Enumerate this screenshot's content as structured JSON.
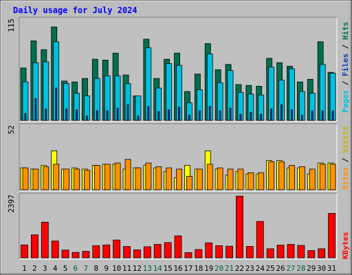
{
  "title": "Daily usage for July 2024",
  "colors": {
    "frame_bg": "#bdbdbd",
    "panel_bg": "#c0c0c0",
    "title_text": "#0000ff",
    "hits": "#007050",
    "files": "#00c0e0",
    "pages": "#0040b0",
    "visits": "#ffff00",
    "sites": "#ff9000",
    "kbytes": "#ff0000",
    "weekend_label": "#006040",
    "day_label": "#000000"
  },
  "axis_labels": {
    "top": {
      "pages": "Pages",
      "files": "Files",
      "hits": "Hits",
      "sep": " / "
    },
    "mid": {
      "sites": "Sites",
      "visits": "Visits",
      "sep": " / "
    },
    "bot": {
      "kbytes": "KBytes"
    }
  },
  "chart_data": {
    "type": "bar",
    "title": "Daily usage for July 2024",
    "categories": [
      "1",
      "2",
      "3",
      "4",
      "5",
      "6",
      "7",
      "8",
      "9",
      "10",
      "11",
      "12",
      "13",
      "14",
      "15",
      "16",
      "17",
      "18",
      "19",
      "20",
      "21",
      "22",
      "23",
      "24",
      "25",
      "26",
      "27",
      "28",
      "29",
      "30",
      "31"
    ],
    "weekend_days": [
      "6",
      "7",
      "13",
      "14",
      "20",
      "21",
      "27",
      "28"
    ],
    "panels": [
      {
        "id": "top",
        "max_label": "115",
        "ylim": [
          0,
          115
        ],
        "series": [
          {
            "name": "Hits",
            "values": [
              60,
              91,
              81,
              107,
              45,
              44,
              48,
              70,
              69,
              77,
              52,
              28,
              93,
              48,
              70,
              77,
              33,
              53,
              88,
              58,
              64,
              41,
              40,
              39,
              71,
              66,
              62,
              44,
              47,
              90,
              55
            ]
          },
          {
            "name": "Files",
            "values": [
              44,
              66,
              67,
              90,
              42,
              31,
              28,
              48,
              51,
              51,
              42,
              28,
              83,
              37,
              65,
              63,
              20,
              35,
              76,
              43,
              57,
              32,
              30,
              29,
              61,
              46,
              59,
              33,
              31,
              64,
              54
            ]
          },
          {
            "name": "Pages",
            "values": [
              8,
              25,
              13,
              37,
              13,
              12,
              5,
              11,
              11,
              14,
              18,
              5,
              16,
              10,
              12,
              15,
              6,
              11,
              16,
              11,
              14,
              7,
              9,
              7,
              13,
              18,
              12,
              6,
              11,
              11,
              11
            ]
          }
        ]
      },
      {
        "id": "mid",
        "max_label": "52",
        "ylim": [
          0,
          52
        ],
        "series": [
          {
            "name": "Visits",
            "values": [
              18,
              17,
              20,
              32,
              17,
              18,
              17,
              20,
              21,
              21,
              17,
              18,
              20,
              18,
              15,
              10,
              20,
              17,
              32,
              17,
              12,
              15,
              13,
              13,
              24,
              24,
              18,
              18,
              13,
              22,
              22
            ]
          },
          {
            "name": "Sites",
            "values": [
              18,
              17,
              19,
              21,
              17,
              17,
              16,
              20,
              21,
              22,
              25,
              18,
              22,
              19,
              18,
              17,
              11,
              17,
              21,
              18,
              17,
              17,
              14,
              14,
              23,
              23,
              20,
              19,
              17,
              21,
              21
            ]
          }
        ]
      },
      {
        "id": "bot",
        "max_label": "2397",
        "ylim": [
          0,
          2397
        ],
        "series": [
          {
            "name": "KBytes",
            "values": [
              500,
              890,
              1380,
              650,
              300,
              210,
              250,
              470,
              500,
              690,
              440,
              310,
              430,
              520,
              590,
              850,
              200,
              320,
              580,
              470,
              450,
              2390,
              440,
              1410,
              350,
              490,
              520,
              480,
              280,
              350,
              1720
            ]
          }
        ]
      }
    ]
  }
}
